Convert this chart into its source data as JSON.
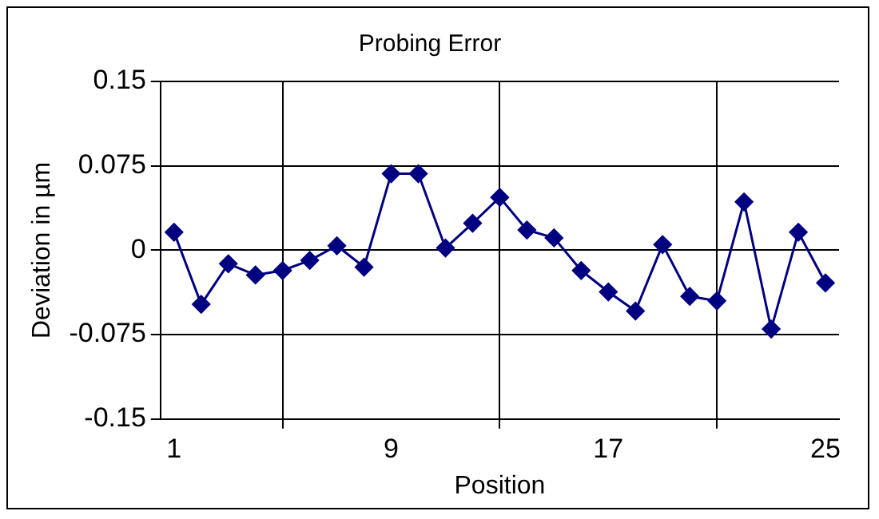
{
  "chart_data": {
    "type": "line",
    "title": "Probing Error",
    "xlabel": "Position",
    "ylabel": "Deviation in µm",
    "categories": [
      "1",
      null,
      null,
      null,
      null,
      null,
      null,
      null,
      "9",
      null,
      null,
      null,
      null,
      null,
      null,
      null,
      "17",
      null,
      null,
      null,
      null,
      null,
      null,
      null,
      "25"
    ],
    "series": [
      {
        "color": "#000080",
        "values": [
          0.016,
          -0.048,
          -0.012,
          -0.022,
          -0.018,
          -0.009,
          0.004,
          -0.015,
          0.068,
          0.068,
          0.002,
          0.024,
          0.047,
          0.018,
          0.011,
          -0.018,
          -0.037,
          -0.054,
          0.005,
          -0.041,
          -0.045,
          0.043,
          -0.07,
          0.016,
          -0.029
        ]
      }
    ],
    "ylim": [
      -0.15,
      0.15
    ],
    "yticks": [
      -0.15,
      -0.075,
      0,
      0.075,
      0.15
    ],
    "grid": true,
    "legend": false,
    "marker": "diamond",
    "line_style": "solid"
  }
}
